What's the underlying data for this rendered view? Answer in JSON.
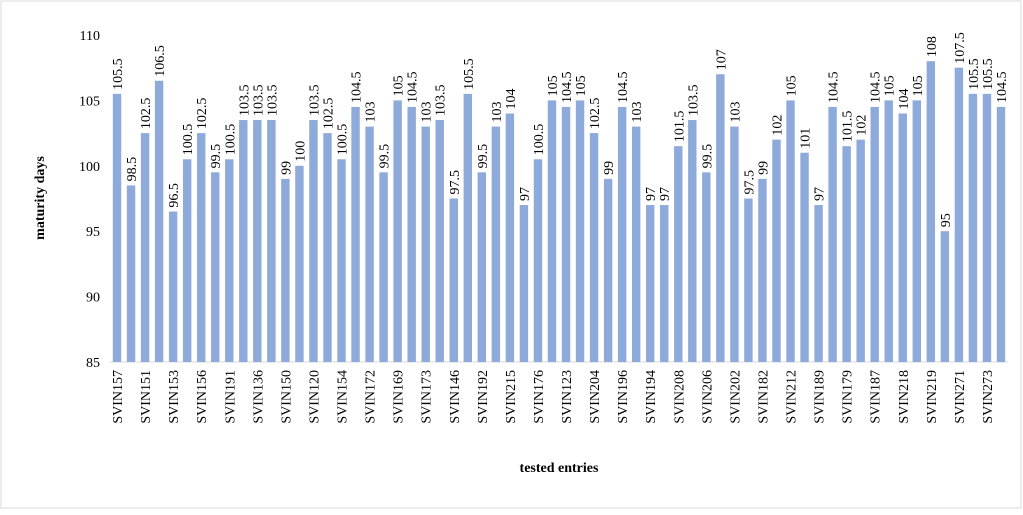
{
  "chart_data": {
    "type": "bar",
    "x_label": "tested entries",
    "y_label": "maturity days",
    "categories": [
      "SVIN157",
      null,
      "SVIN151",
      null,
      "SVIN153",
      null,
      "SVIN156",
      null,
      "SVIN191",
      null,
      "SVIN136",
      null,
      "SVIN150",
      null,
      "SVIN120",
      null,
      "SVIN154",
      null,
      "SVIN172",
      null,
      "SVIN169",
      null,
      "SVIN173",
      null,
      "SVIN146",
      null,
      "SVIN192",
      null,
      "SVIN215",
      null,
      "SVIN176",
      null,
      "SVIN123",
      null,
      "SVIN204",
      null,
      "SVIN196",
      null,
      "SVIN194",
      null,
      "SVIN208",
      null,
      "SVIN206",
      null,
      "SVIN202",
      null,
      "SVIN182",
      null,
      "SVIN212",
      null,
      "SVIN189",
      null,
      "SVIN179",
      null,
      "SVIN187",
      null,
      "SVIN218",
      null,
      "SVIN219",
      null,
      "SVIN271",
      null,
      "SVIN273",
      null
    ],
    "values": [
      105.5,
      98.5,
      102.5,
      106.5,
      96.5,
      100.5,
      102.5,
      99.5,
      100.5,
      103.5,
      103.5,
      103.5,
      99,
      100,
      103.5,
      102.5,
      100.5,
      104.5,
      103,
      99.5,
      105,
      104.5,
      103,
      103.5,
      97.5,
      105.5,
      99.5,
      103,
      104,
      97,
      100.5,
      105,
      104.5,
      105,
      102.5,
      99,
      104.5,
      103,
      97,
      97,
      101.5,
      103.5,
      99.5,
      107,
      103,
      97.5,
      99,
      102,
      105,
      101,
      97,
      104.5,
      101.5,
      102,
      104.5,
      105,
      104,
      105,
      108,
      95,
      107.5,
      105.5,
      105.5,
      104.5
    ],
    "color": "#8eaadb",
    "ylim": [
      85,
      110
    ],
    "yticks": [
      85,
      90,
      95,
      100,
      105,
      110
    ],
    "grid": false
  }
}
